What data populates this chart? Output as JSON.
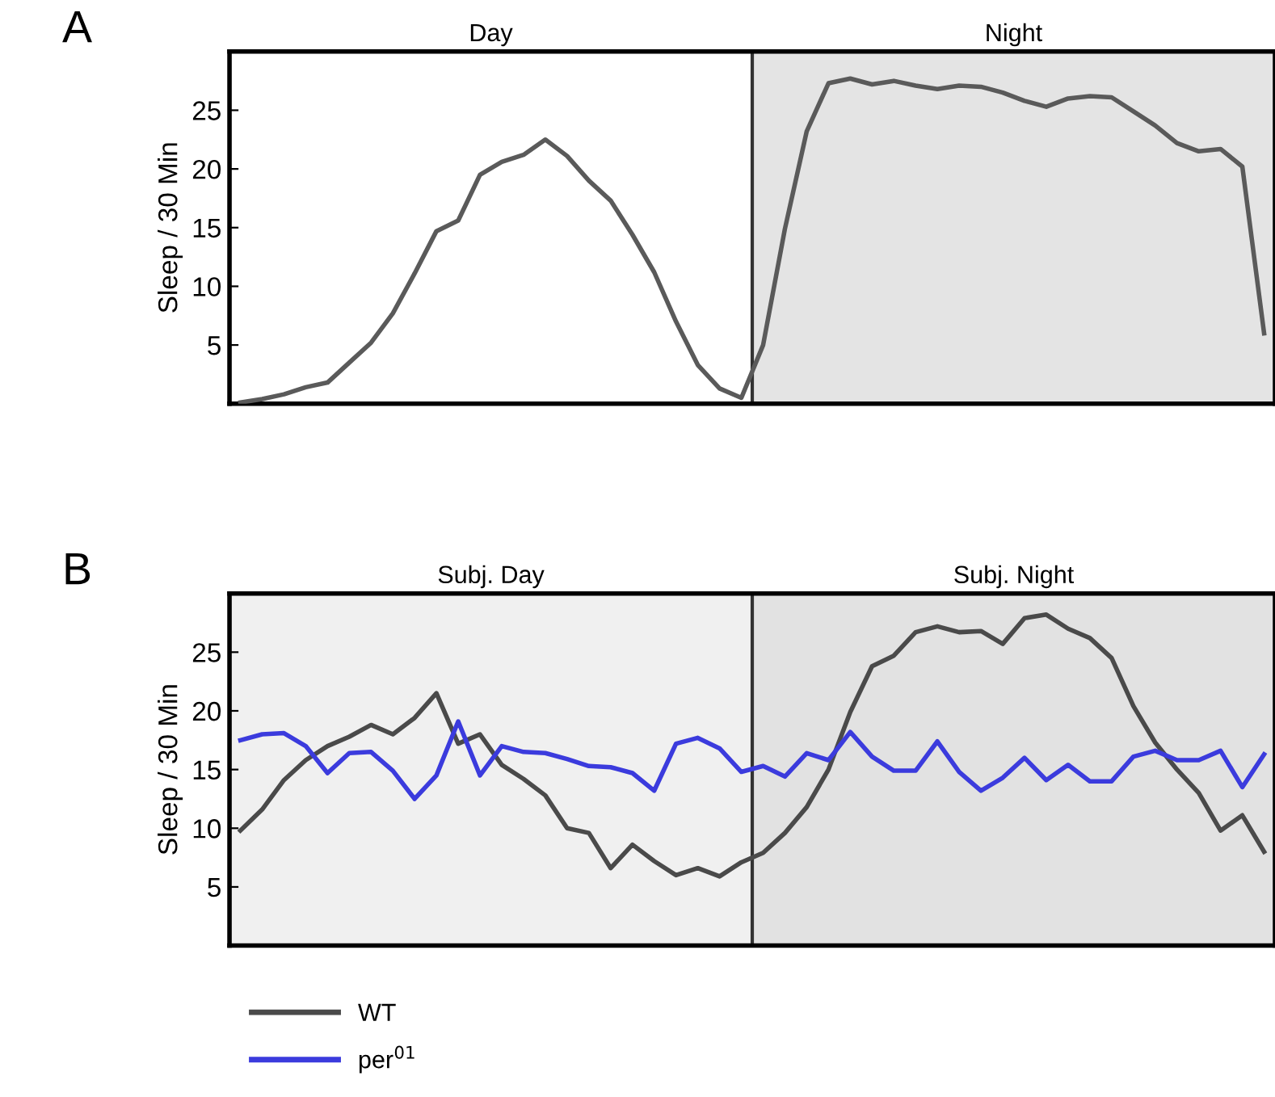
{
  "chart_data": [
    {
      "type": "line",
      "title": "A",
      "ylabel": "Sleep / 30 Min",
      "ylim": [
        0,
        30
      ],
      "yticks": [
        5,
        10,
        15,
        20,
        25
      ],
      "tick_labels": "y",
      "grid": false,
      "legend": false,
      "categories": [
        null,
        null,
        null,
        null,
        null,
        null,
        null,
        null,
        null,
        null,
        null,
        null,
        null,
        null,
        null,
        null,
        null,
        null,
        null,
        null,
        null,
        null,
        null,
        null,
        null,
        null,
        null,
        null,
        null,
        null,
        null,
        null,
        null,
        null,
        null,
        null,
        null,
        null,
        null,
        null,
        null,
        null,
        null,
        null,
        null,
        null,
        null,
        null
      ],
      "annotations": [
        "Day",
        "Night"
      ],
      "series": [
        {
          "color": "#5a5a5a",
          "values": [
            0.1,
            0.4,
            0.8,
            1.4,
            1.8,
            3.5,
            5.2,
            7.7,
            11.1,
            14.7,
            15.6,
            19.5,
            20.6,
            21.2,
            22.5,
            21.1,
            19.0,
            17.3,
            14.4,
            11.2,
            7.0,
            3.3,
            1.3,
            0.5,
            5.0,
            14.9,
            23.2,
            27.3,
            27.7,
            27.2,
            27.5,
            27.1,
            26.8,
            27.1,
            27.0,
            26.5,
            25.8,
            25.3,
            26.0,
            26.2,
            26.1,
            24.9,
            23.7,
            22.2,
            21.5,
            21.7,
            20.2,
            6.0
          ]
        }
      ]
    },
    {
      "type": "line",
      "title": "B",
      "ylabel": "Sleep / 30 Min",
      "ylim": [
        0,
        30
      ],
      "yticks": [
        5,
        10,
        15,
        20,
        25
      ],
      "tick_labels": "y",
      "grid": false,
      "legend": "bottom",
      "categories": [
        null,
        null,
        null,
        null,
        null,
        null,
        null,
        null,
        null,
        null,
        null,
        null,
        null,
        null,
        null,
        null,
        null,
        null,
        null,
        null,
        null,
        null,
        null,
        null,
        null,
        null,
        null,
        null,
        null,
        null,
        null,
        null,
        null,
        null,
        null,
        null,
        null,
        null,
        null,
        null,
        null,
        null,
        null,
        null,
        null,
        null,
        null,
        null
      ],
      "annotations": [
        "Subj. Day",
        "Subj. Night"
      ],
      "series": [
        {
          "name": "WT",
          "color": "#4a4a4a",
          "values": [
            9.8,
            11.6,
            14.1,
            15.8,
            17.0,
            17.8,
            18.8,
            18.0,
            19.4,
            21.5,
            17.2,
            18.0,
            15.4,
            14.2,
            12.8,
            10.0,
            9.6,
            6.6,
            8.6,
            7.2,
            6.0,
            6.6,
            5.9,
            7.1,
            7.9,
            9.6,
            11.8,
            15.0,
            19.9,
            23.8,
            24.7,
            26.7,
            27.2,
            26.7,
            26.8,
            25.7,
            27.9,
            28.2,
            27.0,
            26.2,
            24.5,
            20.4,
            17.3,
            15.0,
            13.0,
            9.8,
            11.1,
            8.0
          ]
        },
        {
          "name": "per$^{01}$",
          "color": "#3b3bdd",
          "values": [
            17.5,
            18.0,
            18.1,
            17.0,
            14.7,
            16.4,
            16.5,
            14.9,
            12.5,
            14.5,
            19.1,
            14.5,
            17.0,
            16.5,
            16.4,
            15.9,
            15.3,
            15.2,
            14.7,
            13.2,
            17.2,
            17.7,
            16.8,
            14.8,
            15.3,
            14.4,
            16.4,
            15.8,
            18.2,
            16.1,
            14.9,
            14.9,
            17.4,
            14.8,
            13.2,
            14.3,
            16.0,
            14.1,
            15.4,
            14.0,
            14.0,
            16.1,
            16.6,
            15.8,
            15.8,
            16.6,
            13.5,
            16.3
          ]
        }
      ]
    }
  ]
}
